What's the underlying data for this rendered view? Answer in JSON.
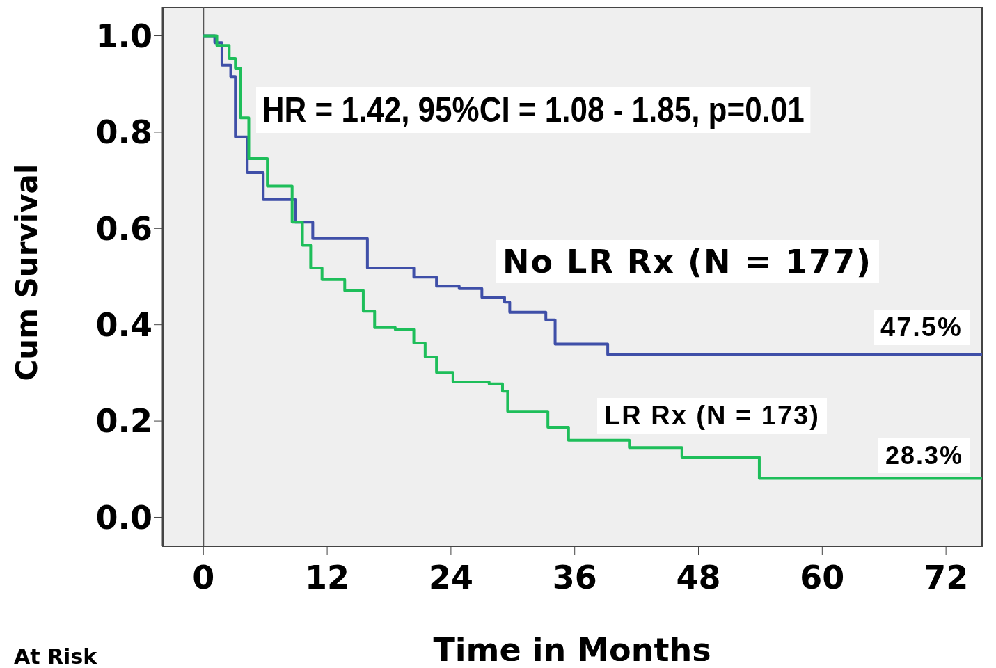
{
  "chart_data": {
    "type": "step",
    "xlabel": "Time in Months",
    "ylabel": "Cum Survival",
    "xlim": [
      -4,
      75.5
    ],
    "ylim": [
      -0.06,
      1.06
    ],
    "xticks": [
      0,
      12,
      24,
      36,
      48,
      60,
      72
    ],
    "yticks": [
      {
        "value": 0,
        "label": "0.0"
      },
      {
        "value": 0.2,
        "label": "0.2"
      },
      {
        "value": 0.4,
        "label": "0.4"
      },
      {
        "value": 0.6,
        "label": "0.6"
      },
      {
        "value": 0.8,
        "label": "0.8"
      },
      {
        "value": 1,
        "label": "1.0"
      }
    ],
    "grid": false,
    "marker": "none",
    "line_style": "solid",
    "ref_lines": [
      {
        "axis": "x",
        "value": 0,
        "label": null,
        "color": "#555555"
      }
    ],
    "annotations": [
      "HR = 1.42, 95%CI = 1.08 - 1.85, p=0.01",
      "47.5%",
      "28.3%",
      "At Risk"
    ],
    "series": [
      {
        "name": "No LR Rx (N = 177)",
        "color": "#3f4fa8",
        "x": [
          0,
          1.1,
          1.8,
          2.65,
          3.1,
          4.25,
          5.8,
          8.9,
          10.6,
          14.9,
          15.9,
          20.4,
          22.6,
          24.8,
          27,
          29.2,
          29.7,
          32,
          33.2,
          34.1,
          39,
          39.2,
          75.5
        ],
        "values": [
          1.0,
          0.986,
          0.939,
          0.915,
          0.79,
          0.716,
          0.66,
          0.613,
          0.579,
          0.579,
          0.518,
          0.499,
          0.48,
          0.475,
          0.457,
          0.447,
          0.426,
          0.426,
          0.41,
          0.36,
          0.36,
          0.338,
          0.338
        ]
      },
      {
        "name": "LR Rx (N = 173)",
        "color": "#1ebe5a",
        "x": [
          0,
          1.3,
          2.5,
          3.1,
          3.6,
          4.4,
          6.2,
          8.6,
          9.6,
          10.4,
          11.5,
          13.7,
          15.5,
          16.6,
          18.6,
          20.4,
          21.5,
          22.6,
          24.2,
          27.7,
          29,
          29.5,
          32.6,
          33.4,
          35.4,
          41.3,
          46.4,
          53.9,
          75.5
        ],
        "values": [
          1.0,
          0.98,
          0.953,
          0.933,
          0.83,
          0.745,
          0.688,
          0.613,
          0.565,
          0.518,
          0.494,
          0.471,
          0.428,
          0.394,
          0.39,
          0.362,
          0.333,
          0.301,
          0.281,
          0.277,
          0.262,
          0.22,
          0.22,
          0.187,
          0.16,
          0.145,
          0.125,
          0.081,
          0.081
        ]
      }
    ]
  }
}
